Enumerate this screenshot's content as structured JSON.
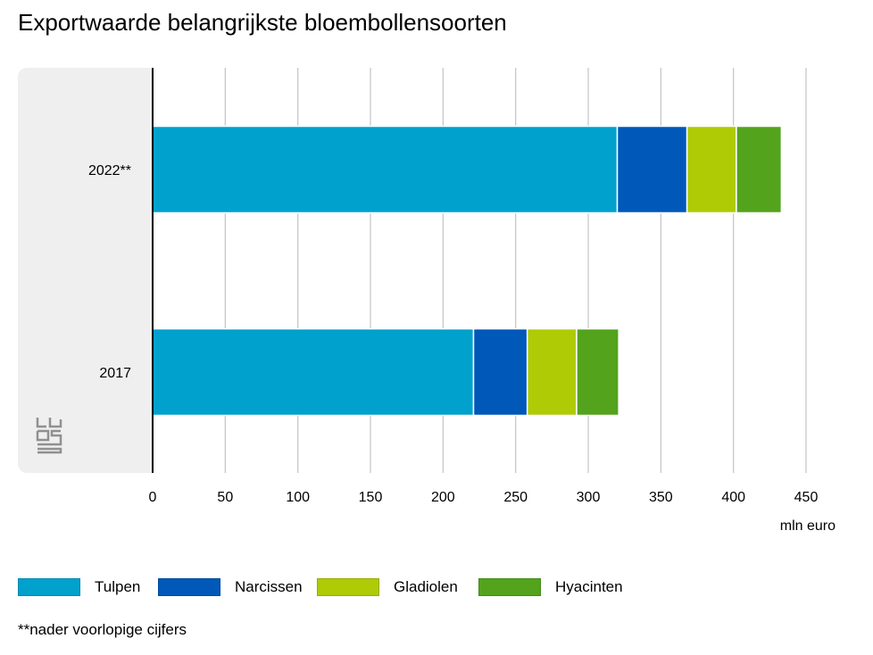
{
  "chart_data": {
    "type": "bar",
    "orientation": "horizontal",
    "stacked": true,
    "title": "Exportwaarde belangrijkste bloembollensoorten",
    "xlabel": "mln euro",
    "xlim": [
      0,
      450
    ],
    "xticks": [
      0,
      50,
      100,
      150,
      200,
      250,
      300,
      350,
      400,
      450
    ],
    "grid": true,
    "legend_position": "bottom",
    "categories": [
      "2022**",
      "2017"
    ],
    "series": [
      {
        "name": "Tulpen",
        "color": "#00a1cd",
        "values": [
          320,
          221
        ]
      },
      {
        "name": "Narcissen",
        "color": "#0058b8",
        "values": [
          48,
          37
        ]
      },
      {
        "name": "Gladiolen",
        "color": "#afcb05",
        "values": [
          34,
          34
        ]
      },
      {
        "name": "Hyacinten",
        "color": "#53a31d",
        "values": [
          31,
          29
        ]
      }
    ],
    "footnote": "**nader voorlopige cijfers"
  },
  "colors": {
    "plot_background": "#efefef",
    "gridline": "#c8c8c8",
    "axis": "#000000"
  },
  "logo_icon": "cbs-logo-icon"
}
